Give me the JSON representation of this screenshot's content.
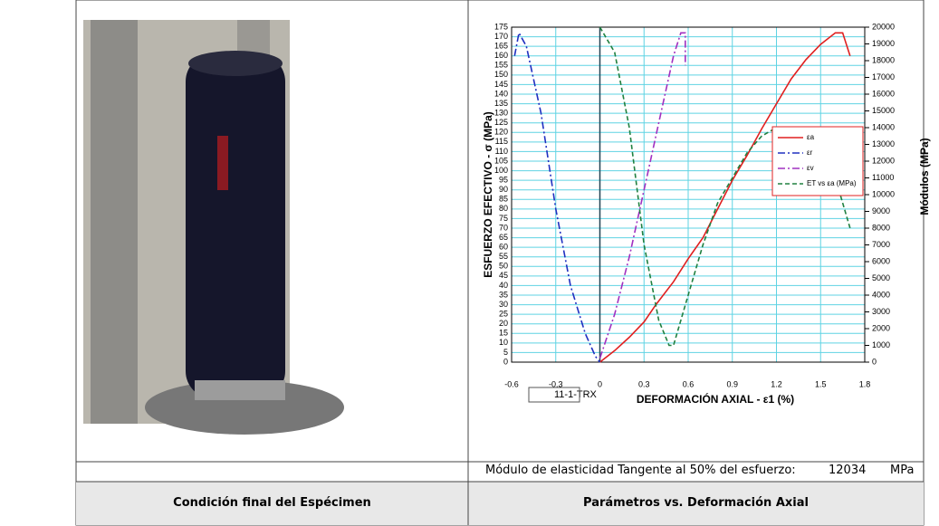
{
  "table": {
    "note_label": "Módulo de elasticidad Tangente al 50% del esfuerzo:",
    "note_value": 12034,
    "note_unit": "MPa",
    "left_header": "Condición final del Espécimen",
    "right_header": "Parámetros vs. Deformación Axial"
  },
  "chart_data": {
    "type": "line",
    "ylabel": "ESFUERZO EFECTIVO - σ (MPa)",
    "y2label": "Módulos (MPa)",
    "xlabel": "DEFORMACIÓN AXIAL - ε1 (%)",
    "annotation": "11-1-TRX",
    "grid": true,
    "legend": "upper right",
    "xlim": [
      -0.6,
      1.8
    ],
    "xticks": [
      -0.6,
      -0.3,
      0,
      0.3,
      0.6,
      0.9,
      1.2,
      1.5,
      1.8
    ],
    "ylim": [
      0,
      175
    ],
    "yticks": [
      0,
      5,
      10,
      15,
      20,
      25,
      30,
      35,
      40,
      45,
      50,
      55,
      60,
      65,
      70,
      75,
      80,
      85,
      90,
      95,
      100,
      105,
      110,
      115,
      120,
      125,
      130,
      135,
      140,
      145,
      150,
      155,
      160,
      165,
      170,
      175
    ],
    "y2lim": [
      0,
      20000
    ],
    "y2ticks": [
      0,
      1000,
      2000,
      3000,
      4000,
      5000,
      6000,
      7000,
      8000,
      9000,
      10000,
      11000,
      12000,
      13000,
      14000,
      15000,
      16000,
      17000,
      18000,
      19000,
      20000
    ],
    "series": [
      {
        "name": "εa",
        "color": "#e02020",
        "dash": "solid",
        "x": [
          0,
          0.1,
          0.2,
          0.3,
          0.38,
          0.5,
          0.6,
          0.7,
          0.8,
          0.9,
          1.0,
          1.1,
          1.2,
          1.3,
          1.4,
          1.5,
          1.6,
          1.65,
          1.7
        ],
        "values": [
          0,
          6,
          13,
          21,
          30,
          42,
          54,
          65,
          80,
          95,
          108,
          122,
          135,
          148,
          158,
          166,
          172,
          172,
          160
        ]
      },
      {
        "name": "εr",
        "color": "#2030c0",
        "dash": "dashdot",
        "x": [
          -0.58,
          -0.55,
          -0.5,
          -0.4,
          -0.3,
          -0.2,
          -0.1,
          -0.03,
          0
        ],
        "values": [
          160,
          172,
          165,
          130,
          80,
          40,
          15,
          3,
          0
        ]
      },
      {
        "name": "εv",
        "color": "#a030c0",
        "dash": "dashdot",
        "x": [
          0,
          0.1,
          0.2,
          0.3,
          0.4,
          0.5,
          0.55,
          0.58,
          0.58
        ],
        "values": [
          2,
          25,
          55,
          90,
          125,
          160,
          172,
          172,
          155
        ]
      },
      {
        "name": "ET vs εa (MPa)",
        "color": "#208040",
        "dash": "dashed",
        "axis": "y2",
        "x": [
          0,
          0.1,
          0.2,
          0.3,
          0.4,
          0.47,
          0.5,
          0.6,
          0.7,
          0.8,
          0.9,
          1.0,
          1.1,
          1.2,
          1.3,
          1.4,
          1.5,
          1.6,
          1.7
        ],
        "values": [
          20000,
          18500,
          14000,
          7000,
          2500,
          1000,
          1000,
          4000,
          7000,
          9500,
          11000,
          12500,
          13500,
          14000,
          14000,
          13500,
          12000,
          11000,
          8000
        ]
      }
    ]
  }
}
